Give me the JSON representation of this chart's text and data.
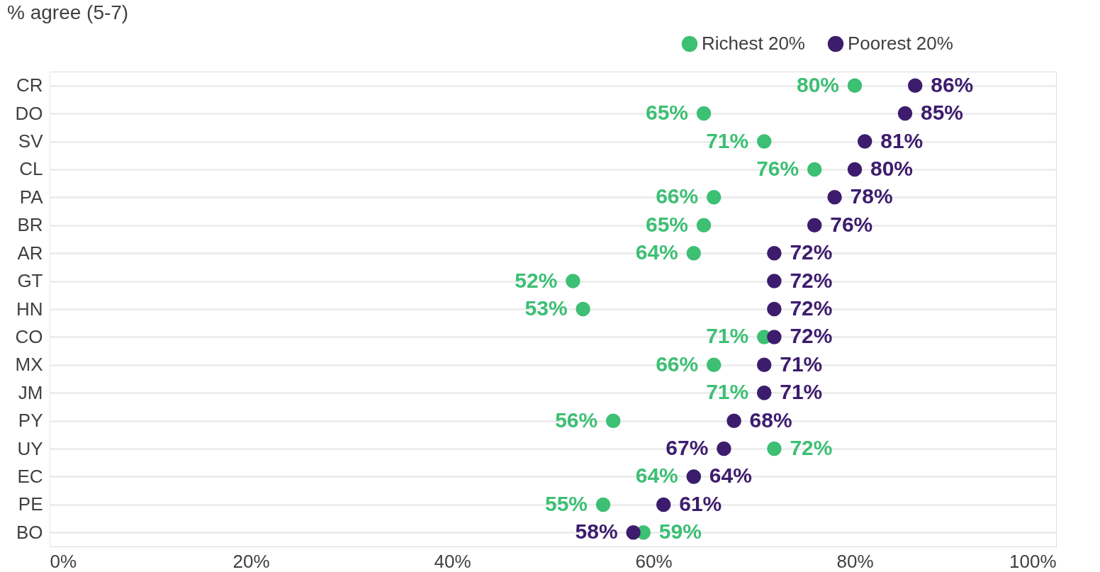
{
  "chart_data": {
    "type": "scatter",
    "orientation": "horizontal",
    "title": "% agree (5-7)",
    "categories": [
      "CR",
      "DO",
      "SV",
      "CL",
      "PA",
      "BR",
      "AR",
      "GT",
      "HN",
      "CO",
      "MX",
      "JM",
      "PY",
      "UY",
      "EC",
      "PE",
      "BO"
    ],
    "series": [
      {
        "name": "Richest 20%",
        "color": "#3dbf74",
        "values": [
          80,
          65,
          71,
          76,
          66,
          65,
          64,
          52,
          53,
          71,
          66,
          71,
          56,
          72,
          64,
          55,
          59
        ],
        "value_labels": [
          "80%",
          "65%",
          "71%",
          "76%",
          "66%",
          "65%",
          "64%",
          "52%",
          "53%",
          "71%",
          "66%",
          "71%",
          "56%",
          "72%",
          "64%",
          "55%",
          "59%"
        ]
      },
      {
        "name": "Poorest 20%",
        "color": "#3d1c6e",
        "values": [
          86,
          85,
          81,
          80,
          78,
          76,
          72,
          72,
          72,
          72,
          71,
          71,
          68,
          67,
          64,
          61,
          58
        ],
        "value_labels": [
          "86%",
          "85%",
          "81%",
          "80%",
          "78%",
          "76%",
          "72%",
          "72%",
          "72%",
          "72%",
          "71%",
          "71%",
          "68%",
          "67%",
          "64%",
          "61%",
          "58%"
        ]
      }
    ],
    "xlim": [
      0,
      100
    ],
    "xticks": [
      {
        "value": 0,
        "label": "0%"
      },
      {
        "value": 20,
        "label": "20%"
      },
      {
        "value": 40,
        "label": "40%"
      },
      {
        "value": 60,
        "label": "60%"
      },
      {
        "value": 80,
        "label": "80%"
      },
      {
        "value": 100,
        "label": "100%"
      }
    ],
    "grid": "y",
    "legend": "top right",
    "marker": "circle"
  }
}
